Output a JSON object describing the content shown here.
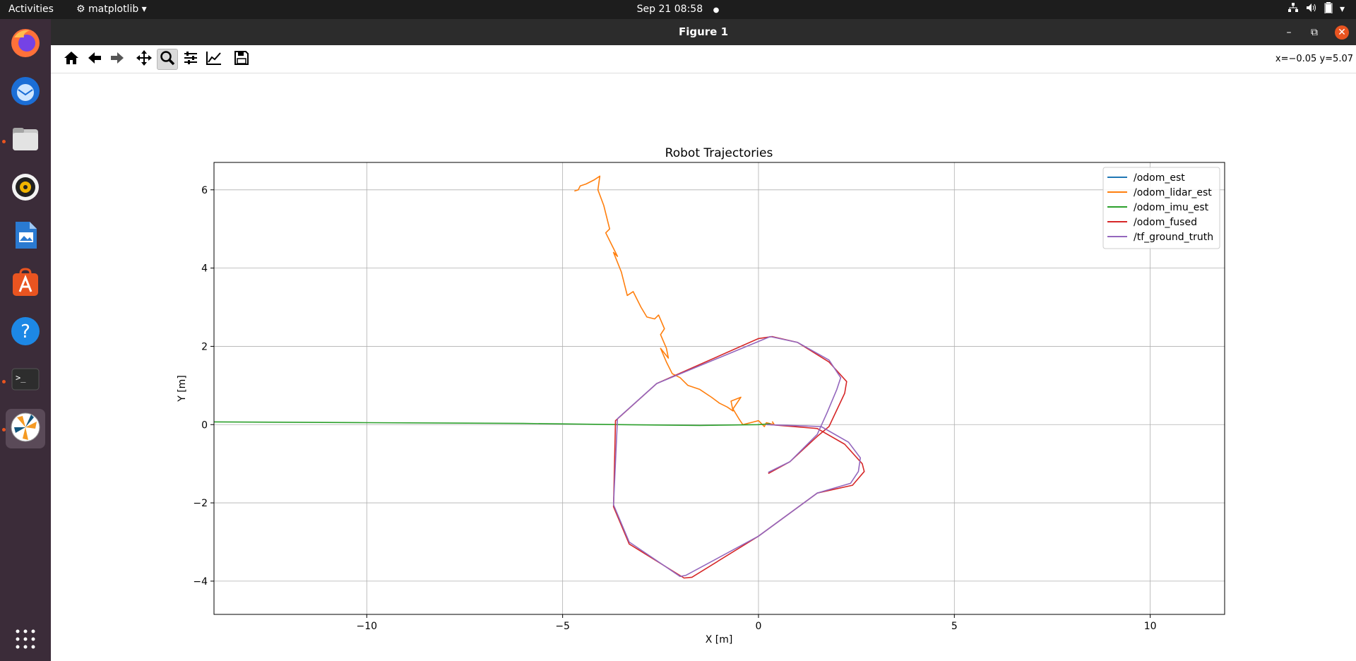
{
  "topbar": {
    "activities": "Activities",
    "app_name": "matplotlib",
    "clock": "Sep 21  08:58"
  },
  "window": {
    "title": "Figure 1",
    "coords": "x=−0.05 y=5.07"
  },
  "toolbar": {
    "buttons": [
      "home-icon",
      "back-icon",
      "forward-icon",
      "pan-icon",
      "zoom-icon",
      "configure-subplots-icon",
      "edit-axis-icon",
      "save-icon"
    ],
    "active": "zoom-icon"
  },
  "dock": {
    "apps": [
      "firefox",
      "thunderbird",
      "files",
      "rhythmbox",
      "libreoffice-writer",
      "ubuntu-software",
      "help",
      "terminal",
      "matplotlib",
      "show-applications"
    ]
  },
  "chart_data": {
    "type": "line",
    "title": "Robot Trajectories",
    "xlabel": "X [m]",
    "ylabel": "Y [m]",
    "xlim": [
      -13.9,
      11.9
    ],
    "ylim": [
      -4.85,
      6.7
    ],
    "xticks": [
      -10,
      -5,
      0,
      5,
      10
    ],
    "yticks": [
      -4,
      -2,
      0,
      2,
      4,
      6
    ],
    "xtick_labels": [
      "−10",
      "−5",
      "0",
      "5",
      "10"
    ],
    "ytick_labels": [
      "−4",
      "−2",
      "0",
      "2",
      "4",
      "6"
    ],
    "grid": true,
    "legend_position": "top-right",
    "series": [
      {
        "name": "/odom_est",
        "color": "#1f77b4",
        "x": [],
        "y": []
      },
      {
        "name": "/odom_lidar_est",
        "color": "#ff7f0e",
        "x": [
          -4.7,
          -4.6,
          -4.55,
          -4.4,
          -4.2,
          -4.05,
          -4.1,
          -3.95,
          -3.8,
          -3.9,
          -3.75,
          -3.6,
          -3.7,
          -3.5,
          -3.35,
          -3.2,
          -3.0,
          -2.85,
          -2.65,
          -2.55,
          -2.4,
          -2.5,
          -2.35,
          -2.3,
          -2.5,
          -2.35,
          -2.2,
          -2.0,
          -1.8,
          -1.5,
          -1.2,
          -1.0,
          -0.8,
          -0.65,
          -0.7,
          -0.45,
          -0.65,
          -0.5,
          -0.4,
          -0.2,
          0.0,
          0.15,
          0.2,
          0.4,
          0.35
        ],
        "y": [
          5.97,
          6.0,
          6.1,
          6.15,
          6.25,
          6.35,
          6.0,
          5.6,
          5.0,
          4.9,
          4.6,
          4.3,
          4.4,
          3.9,
          3.3,
          3.4,
          3.0,
          2.75,
          2.7,
          2.8,
          2.45,
          2.3,
          1.95,
          1.7,
          1.95,
          1.6,
          1.3,
          1.2,
          1.0,
          0.9,
          0.7,
          0.55,
          0.45,
          0.35,
          0.6,
          0.7,
          0.4,
          0.15,
          0.0,
          0.05,
          0.1,
          -0.05,
          0.05,
          0.0,
          0.08
        ]
      },
      {
        "name": "/odom_imu_est",
        "color": "#2ca02c",
        "x": [
          -13.9,
          -10,
          -6,
          -3.5,
          -1.5,
          0.0,
          0.3
        ],
        "y": [
          0.07,
          0.05,
          0.03,
          0.0,
          -0.02,
          0.0,
          0.02
        ]
      },
      {
        "name": "/odom_fused",
        "color": "#d62728",
        "x": [
          0.3,
          1.5,
          2.2,
          2.65,
          2.7,
          2.4,
          1.5,
          0.0,
          -1.7,
          -1.9,
          -3.3,
          -3.7,
          -3.65,
          -2.6,
          0.0,
          0.35,
          1.0,
          1.8,
          2.25,
          2.2,
          1.8,
          1.5,
          0.8,
          0.25
        ],
        "y": [
          0.0,
          -0.1,
          -0.5,
          -1.0,
          -1.2,
          -1.55,
          -1.75,
          -2.85,
          -3.9,
          -3.92,
          -3.05,
          -2.1,
          0.1,
          1.05,
          2.2,
          2.25,
          2.1,
          1.6,
          1.1,
          0.8,
          -0.05,
          -0.3,
          -0.95,
          -1.25
        ]
      },
      {
        "name": "/tf_ground_truth",
        "color": "#9467bd",
        "x": [
          0.2,
          1.6,
          2.3,
          2.6,
          2.55,
          2.35,
          1.5,
          0.0,
          -1.85,
          -2.0,
          -3.3,
          -3.7,
          -3.6,
          -2.6,
          0.3,
          1.0,
          1.8,
          2.1,
          2.0,
          1.75,
          1.5,
          0.8,
          0.25
        ],
        "y": [
          0.0,
          -0.05,
          -0.45,
          -0.85,
          -1.2,
          -1.5,
          -1.75,
          -2.85,
          -3.85,
          -3.88,
          -3.0,
          -2.05,
          0.15,
          1.05,
          2.25,
          2.1,
          1.65,
          1.2,
          0.9,
          0.3,
          -0.25,
          -0.95,
          -1.22
        ]
      }
    ]
  }
}
